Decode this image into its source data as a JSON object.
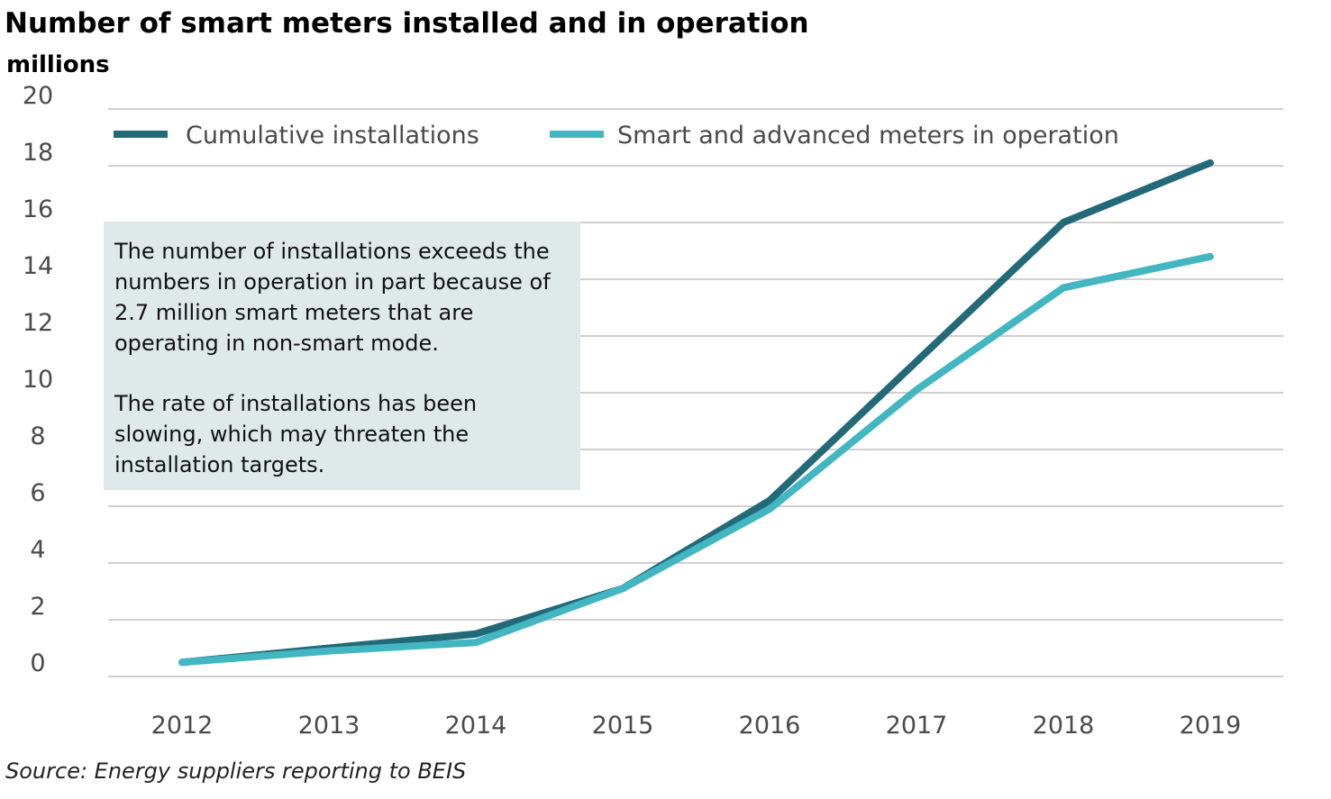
{
  "chart_data": {
    "type": "line",
    "title": "Number of smart meters installed and in operation",
    "unit_label": "millions",
    "x": [
      "2012",
      "2013",
      "2014",
      "2015",
      "2016",
      "2017",
      "2018",
      "2019"
    ],
    "yticks": [
      "0",
      "2",
      "4",
      "6",
      "8",
      "10",
      "12",
      "14",
      "16",
      "18",
      "20"
    ],
    "ylim": [
      0,
      20
    ],
    "grid": true,
    "legend_position": "top",
    "series": [
      {
        "name": "Cumulative installations",
        "color": "#236a78",
        "values": [
          0.5,
          1.0,
          1.5,
          3.1,
          6.2,
          11.1,
          16.0,
          18.1
        ]
      },
      {
        "name": "Smart and advanced meters in operation",
        "color": "#42b6c1",
        "values": [
          0.5,
          0.9,
          1.2,
          3.1,
          5.9,
          10.1,
          13.7,
          14.8
        ]
      }
    ],
    "annotation": [
      "The number of installations exceeds the numbers in operation in part because of 2.7 million smart meters that are operating in non-smart mode.",
      "The rate of installations has been slowing, which may threaten the installation targets."
    ],
    "source": "Source: Energy suppliers reporting to BEIS"
  }
}
